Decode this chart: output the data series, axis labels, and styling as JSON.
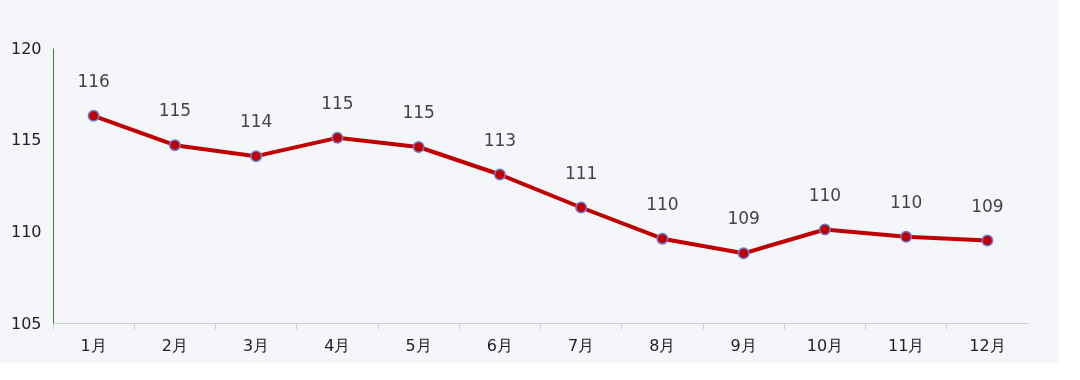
{
  "chart_data": {
    "type": "line",
    "categories": [
      "1月",
      "2月",
      "3月",
      "4月",
      "5月",
      "6月",
      "7月",
      "8月",
      "9月",
      "10月",
      "11月",
      "12月"
    ],
    "series": [
      {
        "color": "#c00000",
        "values": [
          116.3,
          114.7,
          114.1,
          115.1,
          114.6,
          113.1,
          111.3,
          109.6,
          108.8,
          110.1,
          109.7,
          109.5
        ],
        "value_labels": [
          "116",
          "115",
          "114",
          "115",
          "115",
          "113",
          "111",
          "110",
          "109",
          "110",
          "110",
          "109"
        ]
      }
    ],
    "ylim": [
      105,
      120
    ],
    "yticks": [
      105,
      110,
      115,
      120
    ],
    "grid": false,
    "marker": "circle",
    "line_style": "solid"
  }
}
